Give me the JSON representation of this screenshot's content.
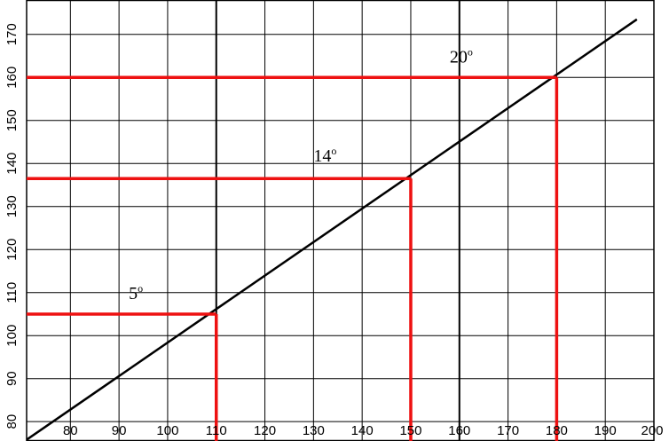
{
  "chart_data": {
    "type": "line",
    "title": "",
    "xlabel": "",
    "ylabel": "",
    "xlim": [
      71,
      200
    ],
    "ylim": [
      75.5,
      178
    ],
    "grid": true,
    "x_ticks": [
      80,
      90,
      100,
      110,
      120,
      130,
      140,
      150,
      160,
      170,
      180,
      190,
      200
    ],
    "y_ticks": [
      80,
      90,
      100,
      110,
      120,
      130,
      140,
      150,
      160,
      170
    ],
    "x_tick_labels": [
      "80",
      "90",
      "100",
      "110",
      "120",
      "130",
      "140",
      "150",
      "160",
      "170",
      "180",
      "190",
      "200"
    ],
    "y_tick_labels": [
      "80",
      "90",
      "100",
      "110",
      "120",
      "130",
      "140",
      "150",
      "160",
      "170"
    ],
    "emphasized_x_gridlines": [
      110,
      160
    ],
    "series": [
      {
        "color": "#000000",
        "x": [
          71,
          196.5
        ],
        "y": [
          75.8,
          173.5
        ]
      }
    ],
    "markers": [
      {
        "x": 110,
        "y": 105,
        "label": "5",
        "label_sup": "o",
        "label_x": 92,
        "label_y": 108.5
      },
      {
        "x": 150,
        "y": 136.5,
        "label": "14",
        "label_sup": "o",
        "label_x": 130,
        "label_y": 140.5
      },
      {
        "x": 180,
        "y": 160,
        "label": "20",
        "label_sup": "o",
        "label_x": 158,
        "label_y": 163.5
      }
    ],
    "marker_color": "#ee1111"
  }
}
